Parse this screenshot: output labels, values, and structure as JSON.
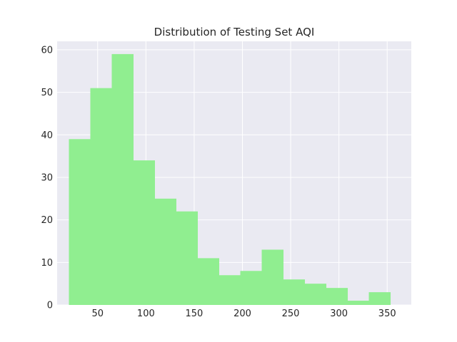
{
  "chart_data": {
    "type": "bar",
    "title": "Distribution of Testing Set AQI",
    "xlabel": "",
    "ylabel": "",
    "bin_edges": [
      20.2,
      42.4,
      64.6,
      86.8,
      109.0,
      131.2,
      153.4,
      175.6,
      197.8,
      220.0,
      242.2,
      264.4,
      286.6,
      308.8,
      331.0,
      353.2
    ],
    "values": [
      39,
      51,
      59,
      34,
      25,
      22,
      11,
      7,
      8,
      13,
      6,
      5,
      4,
      1,
      3
    ],
    "xlim": [
      8,
      375
    ],
    "ylim": [
      0,
      62
    ],
    "x_ticks": [
      50,
      100,
      150,
      200,
      250,
      300,
      350
    ],
    "y_ticks": [
      0,
      10,
      20,
      30,
      40,
      50,
      60
    ],
    "grid": true,
    "bar_color": "#90ee90",
    "background_color": "#eaeaf2",
    "grid_color": "#ffffff"
  }
}
